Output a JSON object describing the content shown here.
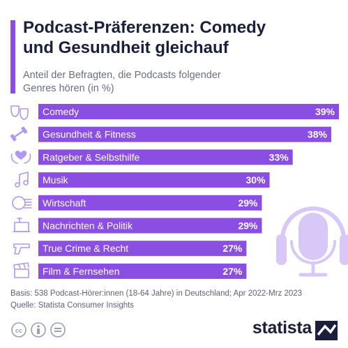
{
  "header": {
    "title_line1": "Podcast-Präferenzen: Comedy",
    "title_line2": "und Gesundheit gleichauf",
    "subtitle_line1": "Anteil der Befragten, die Podcasts folgender",
    "subtitle_line2": "Genres hören (in %)"
  },
  "colors": {
    "bar": "#8a4ee2",
    "accent": "#8a4ee2",
    "icon": "#b197ef",
    "title": "#1b1f3b"
  },
  "chart_data": {
    "type": "bar",
    "orientation": "horizontal",
    "categories": [
      "Comedy",
      "Gesundheit & Fitness",
      "Ratgeber & Selbsthilfe",
      "Musik",
      "Wirtschaft",
      "Nachrichten & Politik",
      "True Crime & Recht",
      "Film & Fernsehen"
    ],
    "values": [
      39,
      38,
      33,
      30,
      29,
      29,
      27,
      27
    ],
    "value_labels": [
      "39%",
      "38%",
      "33%",
      "30%",
      "29%",
      "29%",
      "27%",
      "27%"
    ],
    "icons": [
      "theater-masks-icon",
      "dumbbell-icon",
      "heart-hands-icon",
      "music-note-icon",
      "coins-icon",
      "lectern-icon",
      "gun-icon",
      "clapperboard-icon"
    ],
    "xlim": [
      0,
      39
    ],
    "grid": false,
    "legend": "none"
  },
  "decoration": {
    "illustration": "headphones-microphone-icon"
  },
  "footer": {
    "basis": "Basis: 538 Podcast-Hörer:innen (18-64 Jahre) in Deutschland; Apr 2022-Mrz 2023",
    "source": "Quelle: Statista Consumer Insights",
    "brand": "statista",
    "license_icons": [
      "cc-icon",
      "by-icon",
      "nd-icon"
    ]
  }
}
